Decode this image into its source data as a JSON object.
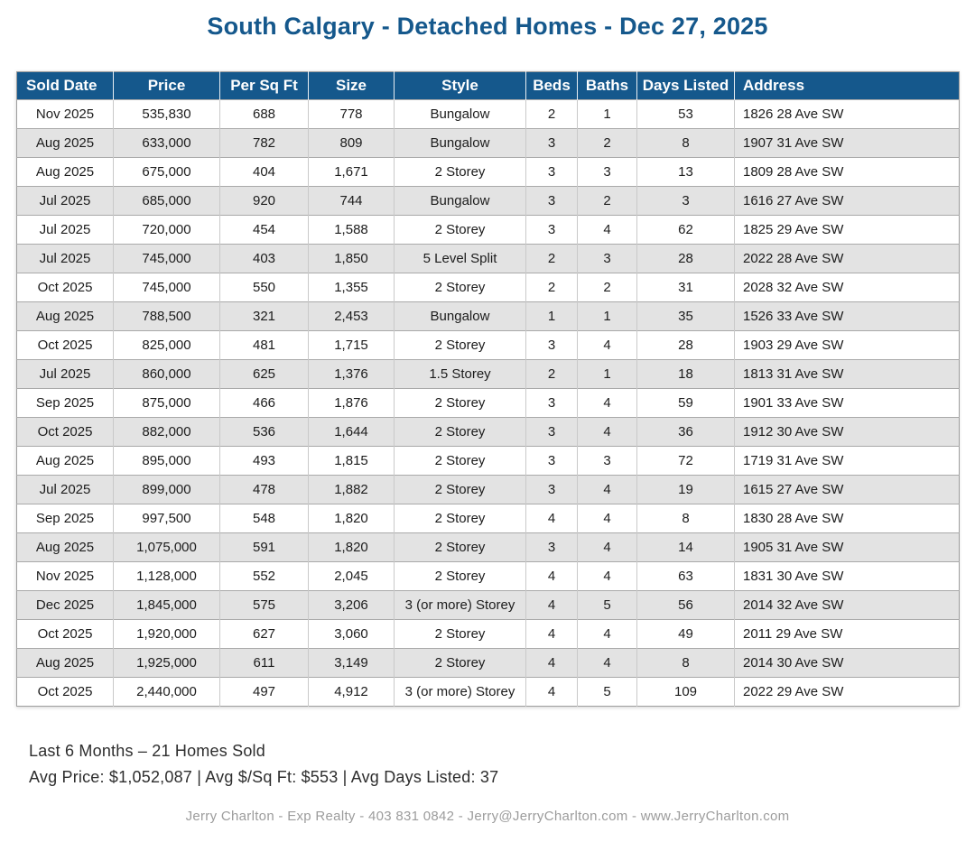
{
  "title": "South Calgary - Detached Homes - Dec 27, 2025",
  "colors": {
    "accent": "#15588C",
    "stripe": "#E3E3E3",
    "footer_gray": "#9C9C9C"
  },
  "table": {
    "columns": [
      {
        "key": "sold_date",
        "label": "Sold Date"
      },
      {
        "key": "price",
        "label": "Price"
      },
      {
        "key": "per_sq_ft",
        "label": "Per Sq Ft"
      },
      {
        "key": "size",
        "label": "Size"
      },
      {
        "key": "style",
        "label": "Style"
      },
      {
        "key": "beds",
        "label": "Beds"
      },
      {
        "key": "baths",
        "label": "Baths"
      },
      {
        "key": "days_listed",
        "label": "Days Listed"
      },
      {
        "key": "address",
        "label": "Address"
      }
    ],
    "rows": [
      {
        "sold_date": "Nov 2025",
        "price": "535,830",
        "per_sq_ft": "688",
        "size": "778",
        "style": "Bungalow",
        "beds": "2",
        "baths": "1",
        "days_listed": "53",
        "address": "1826 28 Ave SW"
      },
      {
        "sold_date": "Aug 2025",
        "price": "633,000",
        "per_sq_ft": "782",
        "size": "809",
        "style": "Bungalow",
        "beds": "3",
        "baths": "2",
        "days_listed": "8",
        "address": "1907 31 Ave SW"
      },
      {
        "sold_date": "Aug 2025",
        "price": "675,000",
        "per_sq_ft": "404",
        "size": "1,671",
        "style": "2 Storey",
        "beds": "3",
        "baths": "3",
        "days_listed": "13",
        "address": "1809 28 Ave SW"
      },
      {
        "sold_date": "Jul 2025",
        "price": "685,000",
        "per_sq_ft": "920",
        "size": "744",
        "style": "Bungalow",
        "beds": "3",
        "baths": "2",
        "days_listed": "3",
        "address": "1616 27 Ave SW"
      },
      {
        "sold_date": "Jul 2025",
        "price": "720,000",
        "per_sq_ft": "454",
        "size": "1,588",
        "style": "2 Storey",
        "beds": "3",
        "baths": "4",
        "days_listed": "62",
        "address": "1825 29 Ave SW"
      },
      {
        "sold_date": "Jul 2025",
        "price": "745,000",
        "per_sq_ft": "403",
        "size": "1,850",
        "style": "5 Level Split",
        "beds": "2",
        "baths": "3",
        "days_listed": "28",
        "address": "2022 28 Ave SW"
      },
      {
        "sold_date": "Oct 2025",
        "price": "745,000",
        "per_sq_ft": "550",
        "size": "1,355",
        "style": "2 Storey",
        "beds": "2",
        "baths": "2",
        "days_listed": "31",
        "address": "2028 32 Ave SW"
      },
      {
        "sold_date": "Aug 2025",
        "price": "788,500",
        "per_sq_ft": "321",
        "size": "2,453",
        "style": "Bungalow",
        "beds": "1",
        "baths": "1",
        "days_listed": "35",
        "address": "1526 33 Ave SW"
      },
      {
        "sold_date": "Oct 2025",
        "price": "825,000",
        "per_sq_ft": "481",
        "size": "1,715",
        "style": "2 Storey",
        "beds": "3",
        "baths": "4",
        "days_listed": "28",
        "address": "1903 29 Ave SW"
      },
      {
        "sold_date": "Jul 2025",
        "price": "860,000",
        "per_sq_ft": "625",
        "size": "1,376",
        "style": "1.5 Storey",
        "beds": "2",
        "baths": "1",
        "days_listed": "18",
        "address": "1813 31 Ave SW"
      },
      {
        "sold_date": "Sep 2025",
        "price": "875,000",
        "per_sq_ft": "466",
        "size": "1,876",
        "style": "2 Storey",
        "beds": "3",
        "baths": "4",
        "days_listed": "59",
        "address": "1901 33 Ave SW"
      },
      {
        "sold_date": "Oct 2025",
        "price": "882,000",
        "per_sq_ft": "536",
        "size": "1,644",
        "style": "2 Storey",
        "beds": "3",
        "baths": "4",
        "days_listed": "36",
        "address": "1912 30 Ave SW"
      },
      {
        "sold_date": "Aug 2025",
        "price": "895,000",
        "per_sq_ft": "493",
        "size": "1,815",
        "style": "2 Storey",
        "beds": "3",
        "baths": "3",
        "days_listed": "72",
        "address": "1719 31 Ave SW"
      },
      {
        "sold_date": "Jul 2025",
        "price": "899,000",
        "per_sq_ft": "478",
        "size": "1,882",
        "style": "2 Storey",
        "beds": "3",
        "baths": "4",
        "days_listed": "19",
        "address": "1615 27 Ave SW"
      },
      {
        "sold_date": "Sep 2025",
        "price": "997,500",
        "per_sq_ft": "548",
        "size": "1,820",
        "style": "2 Storey",
        "beds": "4",
        "baths": "4",
        "days_listed": "8",
        "address": "1830 28 Ave SW"
      },
      {
        "sold_date": "Aug 2025",
        "price": "1,075,000",
        "per_sq_ft": "591",
        "size": "1,820",
        "style": "2 Storey",
        "beds": "3",
        "baths": "4",
        "days_listed": "14",
        "address": "1905 31 Ave SW"
      },
      {
        "sold_date": "Nov 2025",
        "price": "1,128,000",
        "per_sq_ft": "552",
        "size": "2,045",
        "style": "2 Storey",
        "beds": "4",
        "baths": "4",
        "days_listed": "63",
        "address": "1831 30 Ave SW"
      },
      {
        "sold_date": "Dec 2025",
        "price": "1,845,000",
        "per_sq_ft": "575",
        "size": "3,206",
        "style": "3 (or more) Storey",
        "beds": "4",
        "baths": "5",
        "days_listed": "56",
        "address": "2014 32 Ave SW"
      },
      {
        "sold_date": "Oct 2025",
        "price": "1,920,000",
        "per_sq_ft": "627",
        "size": "3,060",
        "style": "2 Storey",
        "beds": "4",
        "baths": "4",
        "days_listed": "49",
        "address": "2011 29 Ave SW"
      },
      {
        "sold_date": "Aug 2025",
        "price": "1,925,000",
        "per_sq_ft": "611",
        "size": "3,149",
        "style": "2 Storey",
        "beds": "4",
        "baths": "4",
        "days_listed": "8",
        "address": "2014 30 Ave SW"
      },
      {
        "sold_date": "Oct 2025",
        "price": "2,440,000",
        "per_sq_ft": "497",
        "size": "4,912",
        "style": "3 (or more) Storey",
        "beds": "4",
        "baths": "5",
        "days_listed": "109",
        "address": "2022 29 Ave SW"
      }
    ]
  },
  "summary": {
    "line1": "Last 6 Months – 21 Homes Sold",
    "line2": "Avg Price: $1,052,087 | Avg $/Sq Ft: $553 | Avg Days Listed: 37"
  },
  "footer": {
    "contact": "Jerry Charlton - Exp Realty - 403 831 0842 - Jerry@JerryCharlton.com - www.JerryCharlton.com"
  }
}
